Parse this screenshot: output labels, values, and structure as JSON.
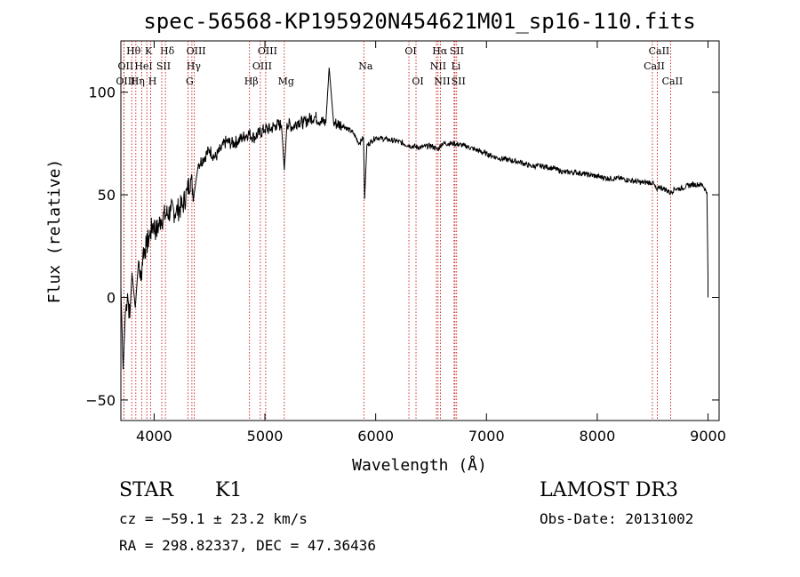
{
  "chart_data": {
    "type": "line",
    "title": "spec-56568-KP195920N454621M01_sp16-110.fits",
    "xlabel": "Wavelength (Å)",
    "ylabel": "Flux (relative)",
    "xlim": [
      3700,
      9100
    ],
    "ylim": [
      -60,
      125
    ],
    "xticks": [
      4000,
      5000,
      6000,
      7000,
      8000,
      9000
    ],
    "yticks": [
      -50,
      0,
      50,
      100
    ],
    "series": [
      {
        "name": "flux",
        "x": [
          3700,
          3720,
          3740,
          3760,
          3780,
          3800,
          3830,
          3860,
          3880,
          3900,
          3930,
          3960,
          3990,
          4020,
          4060,
          4100,
          4150,
          4200,
          4260,
          4300,
          4330,
          4360,
          4400,
          4450,
          4500,
          4550,
          4600,
          4650,
          4700,
          4750,
          4800,
          4850,
          4900,
          4950,
          5000,
          5050,
          5100,
          5150,
          5175,
          5200,
          5250,
          5300,
          5350,
          5400,
          5450,
          5500,
          5550,
          5580,
          5620,
          5700,
          5800,
          5850,
          5890,
          5900,
          5920,
          5960,
          6000,
          6100,
          6200,
          6300,
          6400,
          6500,
          6560,
          6600,
          6700,
          6800,
          6900,
          7000,
          7100,
          7200,
          7300,
          7400,
          7500,
          7600,
          7700,
          7800,
          7900,
          8000,
          8100,
          8200,
          8300,
          8400,
          8500,
          8540,
          8560,
          8600,
          8662,
          8700,
          8750,
          8800,
          8850,
          8900,
          8950,
          8990,
          9000,
          9000
        ],
        "y": [
          5,
          -35,
          -8,
          2,
          -10,
          12,
          -5,
          18,
          8,
          22,
          25,
          30,
          36,
          32,
          38,
          40,
          42,
          42,
          45,
          52,
          58,
          50,
          65,
          68,
          72,
          68,
          72,
          76,
          75,
          76,
          78,
          80,
          78,
          80,
          82,
          82,
          84,
          84,
          62,
          85,
          83,
          86,
          85,
          87,
          88,
          86,
          85,
          112,
          85,
          84,
          80,
          75,
          78,
          48,
          74,
          76,
          78,
          77,
          76,
          74,
          73,
          74,
          72,
          75,
          75,
          74,
          72,
          70,
          68,
          67,
          66,
          64,
          64,
          63,
          61,
          61,
          60,
          59,
          58,
          58,
          57,
          56,
          56,
          52,
          54,
          53,
          51,
          53,
          53,
          54,
          55,
          55,
          55,
          51,
          10,
          0
        ]
      }
    ],
    "lines": [
      {
        "label": "Hθ",
        "x": 3798,
        "row": 0
      },
      {
        "label": "OII",
        "x": 3727,
        "row": 1
      },
      {
        "label": "OIII",
        "x": 3727,
        "row": 2
      },
      {
        "label": "K",
        "x": 3934,
        "row": 0
      },
      {
        "label": "HeI",
        "x": 3889,
        "row": 1
      },
      {
        "label": "Hη",
        "x": 3835,
        "row": 2
      },
      {
        "label": "Hδ",
        "x": 4102,
        "row": 0
      },
      {
        "label": "SII",
        "x": 4069,
        "row": 1
      },
      {
        "label": "H",
        "x": 3969,
        "row": 2
      },
      {
        "label": "OIII",
        "x": 4363,
        "row": 0
      },
      {
        "label": "Hγ",
        "x": 4341,
        "row": 1
      },
      {
        "label": "G",
        "x": 4305,
        "row": 2
      },
      {
        "label": "OIII",
        "x": 5007,
        "row": 0
      },
      {
        "label": "OIII",
        "x": 4959,
        "row": 1
      },
      {
        "label": "Hβ",
        "x": 4861,
        "row": 2
      },
      {
        "label": "Mg",
        "x": 5175,
        "row": 2
      },
      {
        "label": "Na",
        "x": 5893,
        "row": 1
      },
      {
        "label": "OI",
        "x": 6300,
        "row": 0
      },
      {
        "label": "OI",
        "x": 6364,
        "row": 2
      },
      {
        "label": "Hα",
        "x": 6563,
        "row": 0
      },
      {
        "label": "SII",
        "x": 6716,
        "row": 0
      },
      {
        "label": "NII",
        "x": 6548,
        "row": 1
      },
      {
        "label": "Li",
        "x": 6708,
        "row": 1
      },
      {
        "label": "NII",
        "x": 6584,
        "row": 2
      },
      {
        "label": "SII",
        "x": 6731,
        "row": 2
      },
      {
        "label": "CaII",
        "x": 8542,
        "row": 0
      },
      {
        "label": "CaII",
        "x": 8498,
        "row": 1
      },
      {
        "label": "CaII",
        "x": 8662,
        "row": 2
      }
    ]
  },
  "info": {
    "class": "STAR",
    "subclass": "K1",
    "survey": "LAMOST DR3",
    "cz": "cz = −59.1 ± 23.2 km/s",
    "obs_date": "Obs-Date: 20131002",
    "radec": "RA = 298.82337, DEC =  47.36436"
  },
  "colors": {
    "line_marker": "#c00000",
    "spectrum": "#000000"
  }
}
